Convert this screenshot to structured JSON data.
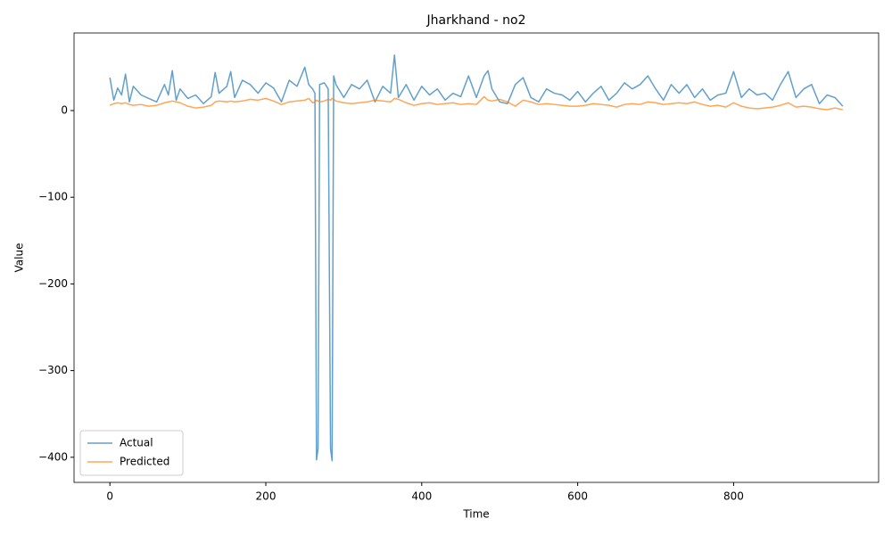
{
  "chart_data": {
    "type": "line",
    "title": "Jharkhand - no2",
    "x_label": "Time",
    "y_label": "Value",
    "x": [
      0,
      5,
      10,
      15,
      20,
      25,
      30,
      40,
      50,
      60,
      70,
      75,
      80,
      85,
      90,
      100,
      110,
      120,
      130,
      135,
      140,
      150,
      155,
      160,
      170,
      180,
      190,
      200,
      210,
      220,
      230,
      240,
      250,
      255,
      260,
      263,
      265,
      267,
      269,
      275,
      280,
      283,
      285,
      287,
      290,
      300,
      310,
      320,
      330,
      340,
      350,
      360,
      365,
      370,
      380,
      390,
      400,
      410,
      420,
      430,
      440,
      450,
      460,
      470,
      480,
      485,
      490,
      500,
      510,
      520,
      530,
      540,
      550,
      560,
      570,
      580,
      590,
      600,
      610,
      620,
      630,
      640,
      650,
      660,
      670,
      680,
      690,
      700,
      710,
      720,
      730,
      740,
      750,
      760,
      770,
      780,
      790,
      800,
      810,
      820,
      830,
      840,
      850,
      860,
      870,
      880,
      890,
      900,
      910,
      920,
      930,
      940
    ],
    "series": [
      {
        "name": "Actual",
        "color": "#1f77b4",
        "values": [
          38,
          12,
          26,
          18,
          42,
          10,
          28,
          18,
          14,
          10,
          30,
          18,
          46,
          12,
          25,
          14,
          18,
          8,
          16,
          44,
          20,
          28,
          45,
          15,
          35,
          30,
          20,
          32,
          26,
          10,
          35,
          28,
          50,
          30,
          25,
          20,
          -403,
          -390,
          30,
          32,
          25,
          -390,
          -404,
          40,
          30,
          15,
          30,
          25,
          35,
          10,
          28,
          20,
          64,
          15,
          30,
          12,
          28,
          18,
          25,
          12,
          20,
          16,
          40,
          15,
          40,
          46,
          25,
          10,
          8,
          30,
          38,
          15,
          10,
          25,
          20,
          18,
          12,
          22,
          10,
          20,
          28,
          12,
          20,
          32,
          25,
          30,
          40,
          25,
          12,
          30,
          20,
          30,
          15,
          25,
          12,
          18,
          20,
          45,
          15,
          25,
          18,
          20,
          12,
          30,
          45,
          15,
          25,
          30,
          8,
          18,
          15,
          5
        ]
      },
      {
        "name": "Predicted",
        "color": "#ff7f0e",
        "values": [
          6,
          8,
          9,
          8,
          9,
          7,
          6,
          7,
          5,
          6,
          9,
          10,
          11,
          10,
          9,
          5,
          3,
          4,
          6,
          10,
          11,
          10,
          11,
          10,
          11,
          13,
          12,
          14,
          11,
          7,
          10,
          11,
          12,
          14,
          9,
          10,
          12,
          11,
          10,
          11,
          13,
          12,
          14,
          13,
          11,
          9,
          8,
          9,
          10,
          12,
          11,
          10,
          14,
          13,
          9,
          6,
          8,
          9,
          7,
          8,
          9,
          7,
          8,
          7,
          16,
          12,
          11,
          13,
          10,
          5,
          12,
          10,
          7,
          8,
          7,
          6,
          5,
          5,
          6,
          8,
          7,
          6,
          4,
          7,
          8,
          7,
          10,
          9,
          7,
          8,
          9,
          8,
          10,
          7,
          5,
          6,
          4,
          9,
          5,
          3,
          2,
          3,
          4,
          6,
          9,
          4,
          5,
          4,
          2,
          1,
          3,
          1
        ]
      }
    ],
    "xlim": [
      -46,
      986
    ],
    "ylim": [
      -429,
      89.5
    ],
    "xticks": [
      0,
      200,
      400,
      600,
      800
    ],
    "yticks": [
      {
        "value": -400,
        "label": "−400"
      },
      {
        "value": -300,
        "label": "−300"
      },
      {
        "value": -200,
        "label": "−200"
      },
      {
        "value": -100,
        "label": "−100"
      },
      0
    ],
    "legend": "lower left"
  }
}
